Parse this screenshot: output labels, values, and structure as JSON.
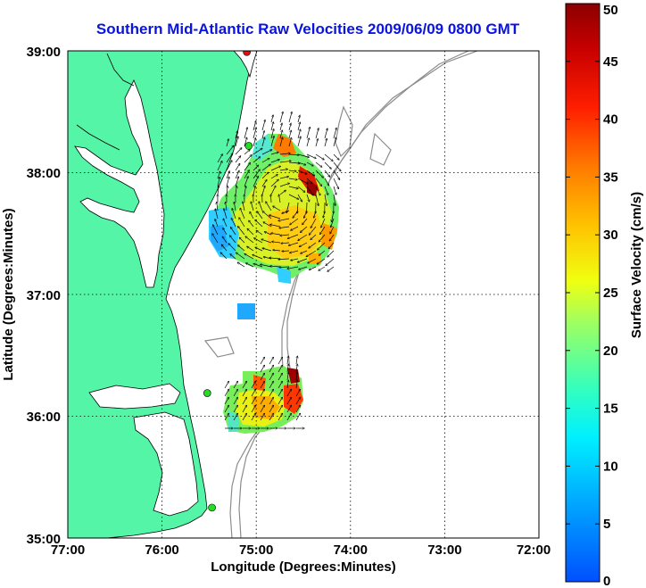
{
  "title": "Southern Mid-Atlantic Raw Velocities 2009/06/09 0800 GMT",
  "axes": {
    "xlabel": "Longitude (Degrees:Minutes)",
    "ylabel": "Latitude (Degrees:Minutes)",
    "x_ticks": [
      "77:00",
      "76:00",
      "75:00",
      "74:00",
      "73:00",
      "72:00"
    ],
    "y_ticks": [
      "39:00",
      "38:00",
      "37:00",
      "36:00",
      "35:00"
    ],
    "x_range": [
      -77,
      -72
    ],
    "y_range": [
      35,
      39
    ],
    "grid": "dotted"
  },
  "colorbar": {
    "label": "Surface Velocity (cm/s)",
    "ticks": [
      "0",
      "5",
      "10",
      "15",
      "20",
      "25",
      "30",
      "35",
      "40",
      "45",
      "50"
    ],
    "range": [
      0,
      50
    ],
    "colormap": "jet"
  },
  "colors": {
    "land": "#55f5a8",
    "water": "#ffffff",
    "coastline": "#000000",
    "bathymetry": "#8c8c8c",
    "title": "#0a14e0",
    "station": "#22dd22"
  },
  "stations": [
    {
      "lon": -75.1,
      "lat": 38.99,
      "color": "#dd1111"
    },
    {
      "lon": -75.08,
      "lat": 38.22,
      "color": "#22dd22"
    },
    {
      "lon": -75.52,
      "lat": 36.19,
      "color": "#22dd22"
    },
    {
      "lon": -75.47,
      "lat": 35.25,
      "color": "#22dd22"
    }
  ]
}
